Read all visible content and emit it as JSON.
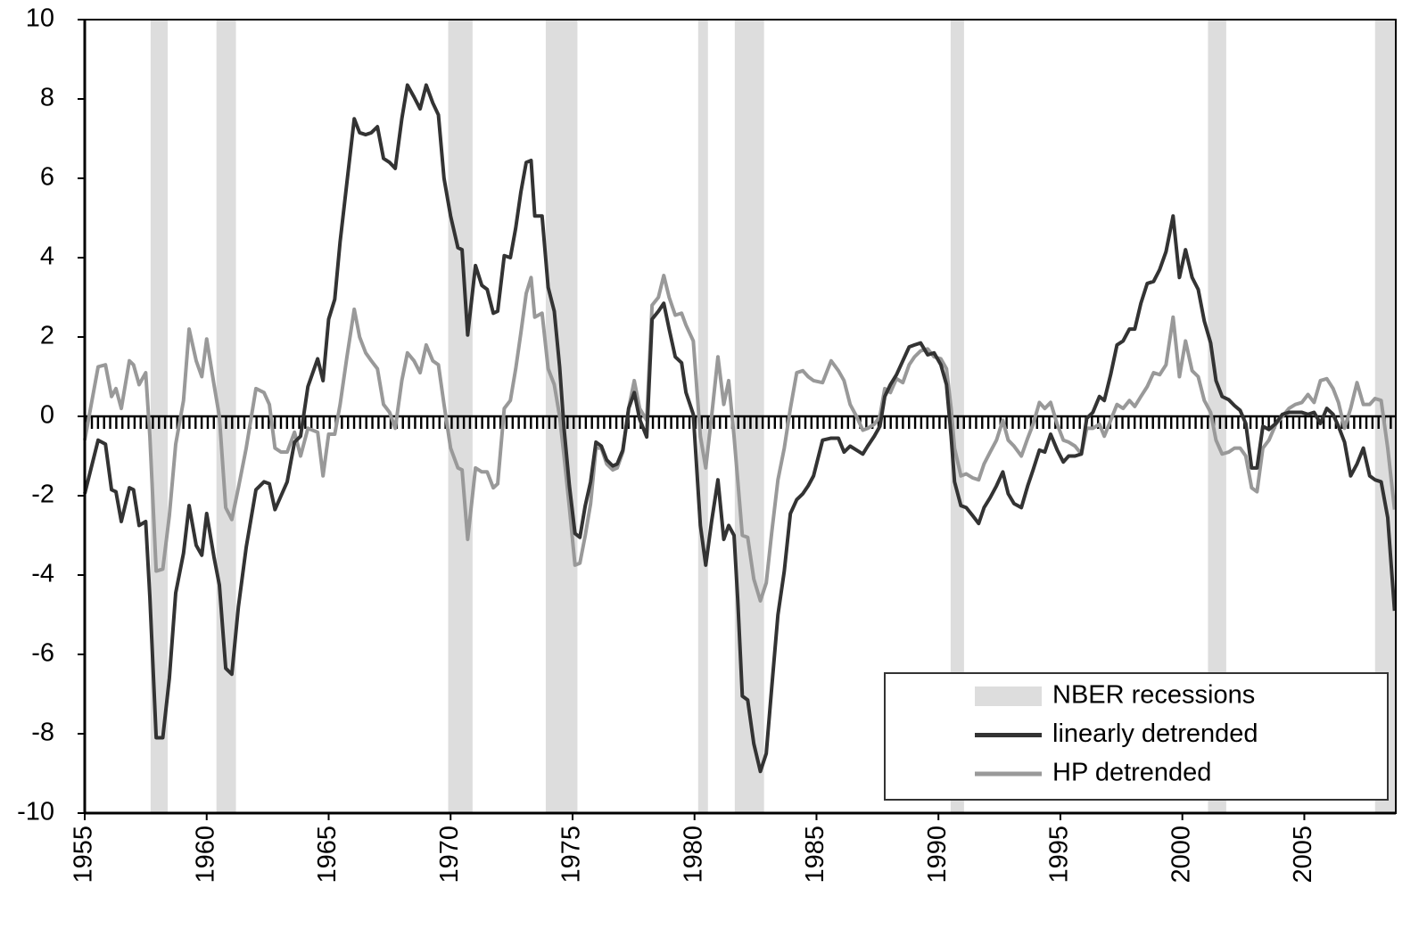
{
  "chart_data": {
    "type": "line",
    "xlim": [
      1955,
      2008.75
    ],
    "ylim": [
      -10,
      10
    ],
    "xticks": [
      1955,
      1960,
      1965,
      1970,
      1975,
      1980,
      1985,
      1990,
      1995,
      2000,
      2005
    ],
    "yticks": [
      -10,
      -8,
      -6,
      -4,
      -2,
      0,
      2,
      4,
      6,
      8,
      10
    ],
    "legend": "lower right",
    "recessions": {
      "name": "NBER recessions",
      "color": "#dddddd",
      "periods": [
        [
          1957.7,
          1958.4
        ],
        [
          1960.4,
          1961.2
        ],
        [
          1969.9,
          1970.9
        ],
        [
          1973.9,
          1975.2
        ],
        [
          1980.15,
          1980.55
        ],
        [
          1981.65,
          1982.85
        ],
        [
          1990.5,
          1991.05
        ],
        [
          2001.05,
          2001.8
        ],
        [
          2007.9,
          2008.75
        ]
      ]
    },
    "x": [
      1955.0,
      1955.55,
      1955.85,
      1956.1,
      1956.28,
      1956.5,
      1956.83,
      1957.0,
      1957.23,
      1957.5,
      1957.67,
      1957.93,
      1958.2,
      1958.47,
      1958.73,
      1959.05,
      1959.28,
      1959.57,
      1959.8,
      1960.0,
      1960.3,
      1960.52,
      1960.78,
      1961.03,
      1961.3,
      1961.62,
      1962.02,
      1962.35,
      1962.57,
      1962.8,
      1963.05,
      1963.3,
      1963.6,
      1963.85,
      1964.15,
      1964.55,
      1964.77,
      1965.0,
      1965.25,
      1965.47,
      1965.75,
      1966.05,
      1966.27,
      1966.52,
      1966.75,
      1967.0,
      1967.25,
      1967.5,
      1967.73,
      1968.0,
      1968.23,
      1968.5,
      1968.75,
      1969.0,
      1969.27,
      1969.5,
      1969.73,
      1970.0,
      1970.3,
      1970.47,
      1970.7,
      1971.02,
      1971.28,
      1971.5,
      1971.75,
      1971.93,
      1972.2,
      1972.45,
      1972.67,
      1972.88,
      1973.1,
      1973.3,
      1973.45,
      1973.75,
      1974.0,
      1974.25,
      1974.47,
      1974.65,
      1974.87,
      1975.1,
      1975.3,
      1975.52,
      1975.74,
      1975.96,
      1976.18,
      1976.4,
      1976.65,
      1976.83,
      1977.06,
      1977.3,
      1977.53,
      1977.75,
      1978.04,
      1978.26,
      1978.52,
      1978.74,
      1978.96,
      1979.21,
      1979.47,
      1979.65,
      1979.95,
      1980.24,
      1980.46,
      1980.7,
      1980.96,
      1981.2,
      1981.4,
      1981.62,
      1981.77,
      1981.96,
      1982.18,
      1982.43,
      1982.7,
      1982.94,
      1983.17,
      1983.42,
      1983.68,
      1983.93,
      1984.19,
      1984.44,
      1984.66,
      1984.88,
      1985.25,
      1985.6,
      1985.9,
      1986.13,
      1986.38,
      1986.64,
      1986.9,
      1987.1,
      1987.37,
      1987.6,
      1987.8,
      1988.03,
      1988.28,
      1988.54,
      1988.8,
      1989.02,
      1989.27,
      1989.56,
      1989.82,
      1990.1,
      1990.33,
      1990.52,
      1990.66,
      1990.92,
      1991.14,
      1991.4,
      1991.65,
      1991.87,
      1992.12,
      1992.38,
      1992.64,
      1992.86,
      1993.1,
      1993.4,
      1993.66,
      1993.88,
      1994.14,
      1994.36,
      1994.6,
      1994.87,
      1995.12,
      1995.34,
      1995.6,
      1995.86,
      1996.08,
      1996.33,
      1996.6,
      1996.8,
      1997.06,
      1997.32,
      1997.57,
      1997.83,
      1998.05,
      1998.3,
      1998.56,
      1998.82,
      1999.07,
      1999.33,
      1999.62,
      1999.88,
      2000.13,
      2000.4,
      2000.65,
      2000.9,
      2001.16,
      2001.38,
      2001.63,
      2001.9,
      2002.14,
      2002.37,
      2002.6,
      2002.84,
      2003.06,
      2003.3,
      2003.55,
      2003.83,
      2004.1,
      2004.37,
      2004.63,
      2004.9,
      2005.15,
      2005.4,
      2005.66,
      2005.92,
      2006.18,
      2006.4,
      2006.65,
      2006.9,
      2007.16,
      2007.42,
      2007.68,
      2007.9,
      2008.15,
      2008.42,
      2008.7
    ],
    "series": [
      {
        "name": "linearly detrended",
        "color": "#333333",
        "values": [
          -1.95,
          -0.6,
          -0.7,
          -1.85,
          -1.9,
          -2.65,
          -1.8,
          -1.85,
          -2.75,
          -2.65,
          -4.55,
          -8.1,
          -8.1,
          -6.6,
          -4.45,
          -3.45,
          -2.25,
          -3.25,
          -3.5,
          -2.45,
          -3.55,
          -4.25,
          -6.35,
          -6.5,
          -4.8,
          -3.3,
          -1.85,
          -1.65,
          -1.7,
          -2.35,
          -2.0,
          -1.65,
          -0.65,
          -0.5,
          0.75,
          1.45,
          0.9,
          2.45,
          2.95,
          4.4,
          5.9,
          7.5,
          7.15,
          7.1,
          7.15,
          7.3,
          6.5,
          6.4,
          6.25,
          7.5,
          8.35,
          8.05,
          7.75,
          8.35,
          7.9,
          7.6,
          6.0,
          5.05,
          4.25,
          4.2,
          2.05,
          3.8,
          3.3,
          3.2,
          2.6,
          2.65,
          4.05,
          4.0,
          4.75,
          5.65,
          6.4,
          6.45,
          5.05,
          5.05,
          3.25,
          2.65,
          1.25,
          -0.3,
          -1.75,
          -2.95,
          -3.05,
          -2.25,
          -1.65,
          -0.65,
          -0.75,
          -1.1,
          -1.25,
          -1.2,
          -0.85,
          0.2,
          0.6,
          -0.07,
          -0.52,
          2.45,
          2.65,
          2.85,
          2.2,
          1.5,
          1.35,
          0.6,
          0.05,
          -2.75,
          -3.75,
          -2.65,
          -1.6,
          -3.1,
          -2.75,
          -3.0,
          -4.6,
          -7.05,
          -7.15,
          -8.25,
          -8.95,
          -8.5,
          -6.8,
          -5.0,
          -3.9,
          -2.45,
          -2.1,
          -1.95,
          -1.75,
          -1.5,
          -0.6,
          -0.55,
          -0.55,
          -0.9,
          -0.75,
          -0.85,
          -0.95,
          -0.75,
          -0.5,
          -0.25,
          0.5,
          0.8,
          1.05,
          1.4,
          1.75,
          1.8,
          1.85,
          1.55,
          1.6,
          1.3,
          0.8,
          -0.5,
          -1.65,
          -2.25,
          -2.3,
          -2.5,
          -2.7,
          -2.3,
          -2.05,
          -1.75,
          -1.4,
          -1.95,
          -2.2,
          -2.3,
          -1.75,
          -1.35,
          -0.85,
          -0.9,
          -0.45,
          -0.85,
          -1.15,
          -1.0,
          -1.0,
          -0.95,
          -0.05,
          0.1,
          0.5,
          0.4,
          1.05,
          1.8,
          1.9,
          2.2,
          2.2,
          2.85,
          3.35,
          3.4,
          3.7,
          4.15,
          5.05,
          3.5,
          4.2,
          3.5,
          3.2,
          2.4,
          1.85,
          0.9,
          0.5,
          0.42,
          0.27,
          0.15,
          -0.18,
          -1.3,
          -1.3,
          -0.25,
          -0.33,
          -0.18,
          0.05,
          0.1,
          0.1,
          0.1,
          0.05,
          0.1,
          -0.18,
          0.2,
          0.05,
          -0.25,
          -0.65,
          -1.5,
          -1.2,
          -0.8,
          -1.5,
          -1.6,
          -1.65,
          -2.55,
          -4.9
        ]
      },
      {
        "name": "HP detrended",
        "color": "#999999",
        "values": [
          -0.6,
          1.25,
          1.3,
          0.5,
          0.7,
          0.2,
          1.4,
          1.3,
          0.8,
          1.1,
          -0.5,
          -3.9,
          -3.85,
          -2.5,
          -0.7,
          0.4,
          2.2,
          1.4,
          1.0,
          1.95,
          0.8,
          0.0,
          -2.3,
          -2.6,
          -1.8,
          -0.8,
          0.7,
          0.6,
          0.3,
          -0.8,
          -0.9,
          -0.9,
          -0.4,
          -1.0,
          -0.3,
          -0.4,
          -1.5,
          -0.45,
          -0.45,
          0.3,
          1.5,
          2.7,
          2.0,
          1.6,
          1.4,
          1.2,
          0.3,
          0.1,
          -0.3,
          0.9,
          1.6,
          1.4,
          1.1,
          1.8,
          1.4,
          1.3,
          0.3,
          -0.8,
          -1.3,
          -1.35,
          -3.1,
          -1.3,
          -1.4,
          -1.4,
          -1.8,
          -1.7,
          0.2,
          0.4,
          1.2,
          2.1,
          3.1,
          3.5,
          2.5,
          2.6,
          1.2,
          0.8,
          0.0,
          -1.0,
          -2.3,
          -3.75,
          -3.7,
          -3.0,
          -2.2,
          -0.8,
          -0.8,
          -1.2,
          -1.35,
          -1.3,
          -0.9,
          0.2,
          0.9,
          0.2,
          -0.1,
          2.8,
          3.0,
          3.55,
          3.0,
          2.55,
          2.6,
          2.3,
          1.9,
          -0.5,
          -1.3,
          0.0,
          1.5,
          0.3,
          0.9,
          -0.5,
          -1.6,
          -3.0,
          -3.05,
          -4.1,
          -4.65,
          -4.2,
          -2.9,
          -1.6,
          -0.8,
          0.2,
          1.1,
          1.15,
          1.0,
          0.9,
          0.85,
          1.4,
          1.15,
          0.9,
          0.3,
          0.0,
          -0.35,
          -0.3,
          -0.2,
          0.0,
          0.7,
          0.6,
          0.95,
          0.85,
          1.3,
          1.5,
          1.65,
          1.7,
          1.5,
          1.45,
          1.2,
          0.2,
          -0.8,
          -1.5,
          -1.45,
          -1.55,
          -1.6,
          -1.2,
          -0.9,
          -0.6,
          -0.1,
          -0.6,
          -0.75,
          -1.0,
          -0.55,
          -0.2,
          0.35,
          0.2,
          0.35,
          -0.2,
          -0.6,
          -0.65,
          -0.75,
          -0.95,
          -0.3,
          -0.3,
          -0.2,
          -0.5,
          -0.1,
          0.3,
          0.2,
          0.4,
          0.25,
          0.5,
          0.75,
          1.1,
          1.05,
          1.3,
          2.5,
          1.0,
          1.9,
          1.15,
          1.0,
          0.4,
          0.1,
          -0.6,
          -0.95,
          -0.9,
          -0.8,
          -0.8,
          -1.0,
          -1.8,
          -1.9,
          -0.8,
          -0.6,
          -0.2,
          0.0,
          0.2,
          0.3,
          0.35,
          0.55,
          0.35,
          0.9,
          0.95,
          0.7,
          0.35,
          -0.3,
          0.2,
          0.85,
          0.3,
          0.3,
          0.45,
          0.4,
          -0.8,
          -2.35
        ]
      }
    ]
  }
}
